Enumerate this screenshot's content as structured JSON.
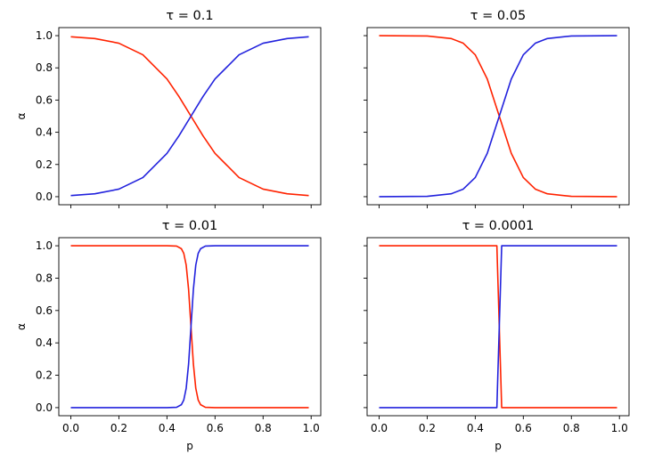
{
  "chart_data": [
    {
      "type": "line",
      "title": "τ = 0.1",
      "tau": 0.1,
      "xlabel": "",
      "ylabel": "α",
      "xlim": [
        -0.05,
        1.04
      ],
      "ylim": [
        -0.05,
        1.05
      ],
      "xticks": [
        0.0,
        0.2,
        0.4,
        0.6,
        0.8,
        1.0
      ],
      "xtick_labels": [],
      "yticks": [
        0.0,
        0.2,
        0.4,
        0.6,
        0.8,
        1.0
      ],
      "ytick_labels": [
        "0.0",
        "0.2",
        "0.4",
        "0.6",
        "0.8",
        "1.0"
      ],
      "grid": false,
      "series": [
        {
          "color": "#ff2200",
          "x": [
            0.0,
            0.1,
            0.2,
            0.3,
            0.4,
            0.45,
            0.5,
            0.55,
            0.6,
            0.7,
            0.8,
            0.9,
            0.99
          ],
          "y": [
            0.993,
            0.982,
            0.953,
            0.881,
            0.731,
            0.622,
            0.5,
            0.378,
            0.269,
            0.119,
            0.047,
            0.018,
            0.007
          ]
        },
        {
          "color": "#2222dd",
          "x": [
            0.0,
            0.1,
            0.2,
            0.3,
            0.4,
            0.45,
            0.5,
            0.55,
            0.6,
            0.7,
            0.8,
            0.9,
            0.99
          ],
          "y": [
            0.007,
            0.018,
            0.047,
            0.119,
            0.269,
            0.378,
            0.5,
            0.622,
            0.731,
            0.881,
            0.953,
            0.982,
            0.993
          ]
        }
      ]
    },
    {
      "type": "line",
      "title": "τ = 0.05",
      "tau": 0.05,
      "xlabel": "",
      "ylabel": "",
      "xlim": [
        -0.05,
        1.04
      ],
      "ylim": [
        -0.05,
        1.05
      ],
      "xticks": [
        0.0,
        0.2,
        0.4,
        0.6,
        0.8,
        1.0
      ],
      "xtick_labels": [],
      "yticks": [
        0.0,
        0.2,
        0.4,
        0.6,
        0.8,
        1.0
      ],
      "ytick_labels": [],
      "grid": false,
      "series": [
        {
          "color": "#ff2200",
          "x": [
            0.0,
            0.2,
            0.3,
            0.35,
            0.4,
            0.45,
            0.5,
            0.55,
            0.6,
            0.65,
            0.7,
            0.8,
            0.99
          ],
          "y": [
            1.0,
            0.998,
            0.982,
            0.953,
            0.881,
            0.731,
            0.5,
            0.269,
            0.119,
            0.047,
            0.018,
            0.002,
            0.0
          ]
        },
        {
          "color": "#2222dd",
          "x": [
            0.0,
            0.2,
            0.3,
            0.35,
            0.4,
            0.45,
            0.5,
            0.55,
            0.6,
            0.65,
            0.7,
            0.8,
            0.99
          ],
          "y": [
            0.0,
            0.002,
            0.018,
            0.047,
            0.119,
            0.269,
            0.5,
            0.731,
            0.881,
            0.953,
            0.982,
            0.998,
            1.0
          ]
        }
      ]
    },
    {
      "type": "line",
      "title": "τ = 0.01",
      "tau": 0.01,
      "xlabel": "p",
      "ylabel": "α",
      "xlim": [
        -0.05,
        1.04
      ],
      "ylim": [
        -0.05,
        1.05
      ],
      "xticks": [
        0.0,
        0.2,
        0.4,
        0.6,
        0.8,
        1.0
      ],
      "xtick_labels": [
        "0.0",
        "0.2",
        "0.4",
        "0.6",
        "0.8",
        "1.0"
      ],
      "yticks": [
        0.0,
        0.2,
        0.4,
        0.6,
        0.8,
        1.0
      ],
      "ytick_labels": [
        "0.0",
        "0.2",
        "0.4",
        "0.6",
        "0.8",
        "1.0"
      ],
      "grid": false,
      "series": [
        {
          "color": "#ff2200",
          "x": [
            0.0,
            0.4,
            0.44,
            0.46,
            0.47,
            0.48,
            0.49,
            0.5,
            0.51,
            0.52,
            0.53,
            0.54,
            0.56,
            0.6,
            0.99
          ],
          "y": [
            1.0,
            1.0,
            0.998,
            0.982,
            0.953,
            0.881,
            0.731,
            0.5,
            0.269,
            0.119,
            0.047,
            0.018,
            0.002,
            0.0,
            0.0
          ]
        },
        {
          "color": "#2222dd",
          "x": [
            0.0,
            0.4,
            0.44,
            0.46,
            0.47,
            0.48,
            0.49,
            0.5,
            0.51,
            0.52,
            0.53,
            0.54,
            0.56,
            0.6,
            0.99
          ],
          "y": [
            0.0,
            0.0,
            0.002,
            0.018,
            0.047,
            0.119,
            0.269,
            0.5,
            0.731,
            0.881,
            0.953,
            0.982,
            0.998,
            1.0,
            1.0
          ]
        }
      ]
    },
    {
      "type": "line",
      "title": "τ = 0.0001",
      "tau": 0.0001,
      "xlabel": "p",
      "ylabel": "",
      "xlim": [
        -0.05,
        1.04
      ],
      "ylim": [
        -0.05,
        1.05
      ],
      "xticks": [
        0.0,
        0.2,
        0.4,
        0.6,
        0.8,
        1.0
      ],
      "xtick_labels": [
        "0.0",
        "0.2",
        "0.4",
        "0.6",
        "0.8",
        "1.0"
      ],
      "yticks": [
        0.0,
        0.2,
        0.4,
        0.6,
        0.8,
        1.0
      ],
      "ytick_labels": [],
      "grid": false,
      "series": [
        {
          "color": "#ff2200",
          "x": [
            0.0,
            0.49,
            0.5,
            0.51,
            0.99
          ],
          "y": [
            1.0,
            1.0,
            0.5,
            0.0,
            0.0
          ]
        },
        {
          "color": "#2222dd",
          "x": [
            0.0,
            0.49,
            0.5,
            0.51,
            0.99
          ],
          "y": [
            0.0,
            0.0,
            0.5,
            1.0,
            1.0
          ]
        }
      ]
    }
  ]
}
